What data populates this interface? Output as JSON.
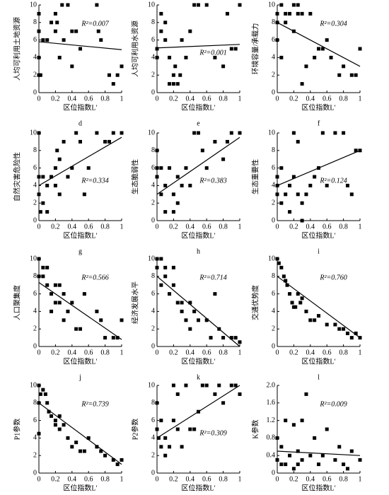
{
  "chart_data": [
    {
      "type": "scatter",
      "label": "d",
      "x_label": "区位指数L′",
      "y_label": "人均可利用土地资源",
      "annotation": "R²=0.007",
      "xlim": [
        0,
        1
      ],
      "xticks": [
        0,
        0.2,
        0.4,
        0.6,
        0.8,
        1
      ],
      "ylim": [
        0,
        10
      ],
      "yticks": [
        0,
        2,
        4,
        6,
        8,
        10
      ],
      "color": "#000000",
      "x": [
        0,
        0,
        0,
        0,
        0.02,
        0.05,
        0.1,
        0.15,
        0.2,
        0.2,
        0.22,
        0.25,
        0.28,
        0.3,
        0.35,
        0.4,
        0.4,
        0.45,
        0.5,
        0.7,
        0.72,
        0.75,
        0.85,
        0.9,
        0.95,
        1
      ],
      "values": [
        9,
        7,
        4,
        2,
        2,
        6,
        6,
        8,
        7,
        9,
        8,
        4,
        10,
        6,
        10,
        7,
        3,
        7,
        5,
        10,
        7,
        6,
        2,
        1,
        2,
        3
      ],
      "trendline": {
        "x": [
          0,
          1
        ],
        "y": [
          5.8,
          4.9
        ]
      }
    },
    {
      "type": "scatter",
      "label": "e",
      "x_label": "区位指数L′",
      "y_label": "人均可利用水资源",
      "annotation": "R²=0.001",
      "xlim": [
        0,
        1
      ],
      "xticks": [
        0,
        0.2,
        0.4,
        0.6,
        0.8,
        1
      ],
      "ylim": [
        0,
        10
      ],
      "yticks": [
        0,
        2,
        4,
        6,
        8,
        10
      ],
      "color": "#000000",
      "x": [
        0,
        0,
        0.05,
        0.05,
        0.1,
        0.1,
        0.15,
        0.15,
        0.2,
        0.2,
        0.22,
        0.25,
        0.28,
        0.3,
        0.35,
        0.4,
        0.45,
        0.5,
        0.6,
        0.7,
        0.8,
        0.85,
        0.9,
        0.95,
        1
      ],
      "values": [
        4,
        5,
        7,
        9,
        8,
        6,
        4,
        1,
        2,
        1,
        3,
        1,
        2,
        6,
        4,
        7,
        10,
        10,
        10,
        4,
        3,
        9,
        5,
        5,
        10
      ],
      "trendline": {
        "x": [
          0,
          1
        ],
        "y": [
          5.1,
          5.5
        ]
      }
    },
    {
      "type": "scatter",
      "label": "f",
      "x_label": "区位指数L′",
      "y_label": "环境容量/承载力",
      "annotation": "R²=0.304",
      "xlim": [
        0,
        1
      ],
      "xticks": [
        0,
        0.2,
        0.4,
        0.6,
        0.8,
        1
      ],
      "ylim": [
        0,
        10
      ],
      "yticks": [
        0,
        2,
        4,
        6,
        8,
        10
      ],
      "color": "#000000",
      "x": [
        0,
        0,
        0,
        0.05,
        0.05,
        0.1,
        0.1,
        0.15,
        0.2,
        0.2,
        0.25,
        0.25,
        0.3,
        0.3,
        0.35,
        0.4,
        0.45,
        0.5,
        0.55,
        0.6,
        0.65,
        0.75,
        0.8,
        0.9,
        0.95,
        1
      ],
      "values": [
        8,
        6,
        9,
        4,
        10,
        9,
        8,
        9,
        10,
        7,
        9,
        10,
        9,
        1,
        3,
        9,
        4,
        5,
        5,
        6,
        4,
        2,
        3,
        2,
        2,
        5
      ],
      "trendline": {
        "x": [
          0,
          1
        ],
        "y": [
          8,
          3
        ]
      }
    },
    {
      "type": "scatter",
      "label": "g",
      "x_label": "区位指数L′",
      "y_label": "自然灾害危险性",
      "annotation": "R²=0.334",
      "xlim": [
        0,
        1
      ],
      "xticks": [
        0,
        0.2,
        0.4,
        0.6,
        0.8,
        1
      ],
      "ylim": [
        0,
        10
      ],
      "yticks": [
        0,
        2,
        4,
        6,
        8,
        10
      ],
      "color": "#000000",
      "x": [
        0,
        0,
        0,
        0.02,
        0.05,
        0.05,
        0.1,
        0.1,
        0.15,
        0.2,
        0.2,
        0.22,
        0.25,
        0.25,
        0.3,
        0.35,
        0.4,
        0.45,
        0.5,
        0.55,
        0.6,
        0.7,
        0.8,
        0.85,
        0.9,
        1
      ],
      "values": [
        10,
        5,
        3,
        1,
        2,
        5,
        4,
        1,
        5,
        6,
        4,
        8,
        7,
        3,
        9,
        5,
        6,
        10,
        9,
        3,
        6,
        10,
        9,
        9,
        10,
        10
      ],
      "trendline": {
        "x": [
          0,
          1
        ],
        "y": [
          4,
          9.5
        ]
      }
    },
    {
      "type": "scatter",
      "label": "h",
      "x_label": "区位指数L′",
      "y_label": "生态脆弱性",
      "annotation": "R²=0.383",
      "xlim": [
        0,
        1
      ],
      "xticks": [
        0,
        0.2,
        0.4,
        0.6,
        0.8,
        1
      ],
      "ylim": [
        0,
        10
      ],
      "yticks": [
        0,
        2,
        4,
        6,
        8,
        10
      ],
      "color": "#000000",
      "x": [
        0,
        0,
        0,
        0.05,
        0.05,
        0.1,
        0.1,
        0.15,
        0.2,
        0.2,
        0.25,
        0.25,
        0.3,
        0.35,
        0.4,
        0.45,
        0.5,
        0.55,
        0.6,
        0.7,
        0.8,
        0.85,
        0.9,
        1
      ],
      "values": [
        8,
        5,
        6,
        3,
        6,
        1,
        4,
        6,
        3,
        1,
        5,
        2,
        4,
        6,
        4,
        10,
        10,
        8,
        6,
        9,
        7,
        9,
        10,
        10
      ],
      "trendline": {
        "x": [
          0,
          1
        ],
        "y": [
          3,
          9.5
        ]
      }
    },
    {
      "type": "scatter",
      "label": "i",
      "x_label": "区位指数L′",
      "y_label": "生态重要性",
      "annotation": "R²=0.124",
      "xlim": [
        0,
        1
      ],
      "xticks": [
        0,
        0.2,
        0.4,
        0.6,
        0.8,
        1
      ],
      "ylim": [
        0,
        10
      ],
      "yticks": [
        0,
        2,
        4,
        6,
        8,
        10
      ],
      "color": "#000000",
      "x": [
        0,
        0,
        0,
        0.05,
        0.05,
        0.1,
        0.15,
        0.15,
        0.2,
        0.2,
        0.25,
        0.25,
        0.3,
        0.3,
        0.35,
        0.4,
        0.45,
        0.5,
        0.55,
        0.6,
        0.7,
        0.8,
        0.85,
        0.9,
        0.95,
        1
      ],
      "values": [
        4,
        3,
        5,
        2,
        6,
        3,
        4,
        1,
        5,
        10,
        3,
        9,
        2,
        0,
        3,
        4,
        5,
        6,
        10,
        4,
        10,
        10,
        4,
        3,
        8,
        8
      ],
      "trendline": {
        "x": [
          0,
          1
        ],
        "y": [
          4,
          8
        ]
      }
    },
    {
      "type": "scatter",
      "label": "j",
      "x_label": "区位指数L′",
      "y_label": "人口聚集度",
      "annotation": "R²=0.566",
      "xlim": [
        0,
        1
      ],
      "xticks": [
        0,
        0.2,
        0.4,
        0.6,
        0.8,
        1
      ],
      "ylim": [
        0,
        10
      ],
      "yticks": [
        0,
        2,
        4,
        6,
        8,
        10
      ],
      "color": "#000000",
      "x": [
        0,
        0,
        0.05,
        0.05,
        0.1,
        0.1,
        0.15,
        0.15,
        0.2,
        0.2,
        0.25,
        0.25,
        0.3,
        0.3,
        0.35,
        0.4,
        0.45,
        0.5,
        0.55,
        0.7,
        0.75,
        0.8,
        0.9,
        0.95,
        1
      ],
      "values": [
        8,
        10,
        9,
        8,
        7,
        9,
        6,
        4,
        7,
        5,
        5,
        7,
        3,
        6,
        4,
        5,
        2,
        2,
        6,
        4,
        3,
        1,
        1,
        1,
        3
      ],
      "trendline": {
        "x": [
          0,
          1
        ],
        "y": [
          7.3,
          0.8
        ]
      }
    },
    {
      "type": "scatter",
      "label": "k",
      "x_label": "区位指数L′",
      "y_label": "经济发展水平",
      "annotation": "R²=0.714",
      "xlim": [
        0,
        1
      ],
      "xticks": [
        0,
        0.2,
        0.4,
        0.6,
        0.8,
        1
      ],
      "ylim": [
        0,
        10
      ],
      "yticks": [
        0,
        2,
        4,
        6,
        8,
        10
      ],
      "color": "#000000",
      "x": [
        0,
        0,
        0.05,
        0.05,
        0.1,
        0.1,
        0.15,
        0.2,
        0.2,
        0.25,
        0.3,
        0.3,
        0.35,
        0.4,
        0.4,
        0.45,
        0.5,
        0.6,
        0.65,
        0.7,
        0.75,
        0.8,
        0.9,
        0.95,
        1
      ],
      "values": [
        10,
        9,
        10,
        7,
        9,
        8,
        6,
        7,
        9,
        5,
        5,
        4,
        3,
        5,
        2,
        4,
        3,
        3,
        1,
        6,
        2,
        1,
        1,
        1,
        0.5
      ],
      "trendline": {
        "x": [
          0,
          1
        ],
        "y": [
          8,
          0
        ]
      }
    },
    {
      "type": "scatter",
      "label": "l",
      "x_label": "区位指数L′",
      "y_label": "交通优势度",
      "annotation": "R²=0.760",
      "xlim": [
        0,
        1
      ],
      "xticks": [
        0,
        0.2,
        0.4,
        0.6,
        0.8,
        1
      ],
      "ylim": [
        0,
        10
      ],
      "yticks": [
        0,
        2,
        4,
        6,
        8,
        10
      ],
      "color": "#000000",
      "x": [
        0,
        0.02,
        0.05,
        0.08,
        0.1,
        0.12,
        0.15,
        0.18,
        0.2,
        0.22,
        0.25,
        0.28,
        0.3,
        0.35,
        0.4,
        0.45,
        0.5,
        0.6,
        0.7,
        0.75,
        0.8,
        0.85,
        0.9,
        0.95,
        1
      ],
      "values": [
        10,
        9.5,
        9,
        8,
        7.5,
        7,
        6,
        5,
        4.5,
        4.5,
        6,
        5,
        5.5,
        4,
        3,
        3,
        3.5,
        2.5,
        2.5,
        2,
        2,
        1.5,
        1,
        1.5,
        1
      ],
      "trendline": {
        "x": [
          0,
          1
        ],
        "y": [
          8,
          1
        ]
      }
    },
    {
      "type": "scatter",
      "x_label": "区位指数L′",
      "y_label": "P1参数",
      "annotation": "R²=0.739",
      "xlim": [
        0,
        1
      ],
      "xticks": [
        0,
        0.2,
        0.4,
        0.6,
        0.8,
        1
      ],
      "ylim": [
        0,
        10
      ],
      "yticks": [
        0,
        2,
        4,
        6,
        8,
        10
      ],
      "color": "#000000",
      "x": [
        0,
        0,
        0,
        0.02,
        0.05,
        0.08,
        0.1,
        0.12,
        0.15,
        0.2,
        0.2,
        0.25,
        0.25,
        0.3,
        0.35,
        0.4,
        0.45,
        0.5,
        0.55,
        0.6,
        0.7,
        0.75,
        0.8,
        0.9,
        0.95,
        1
      ],
      "values": [
        10,
        4.5,
        8,
        9,
        9.5,
        9,
        8,
        7,
        6.5,
        6,
        5.5,
        6.5,
        5,
        5.5,
        4,
        3,
        3.5,
        2.5,
        2.5,
        4,
        3,
        2.5,
        2,
        1.5,
        1,
        1.5
      ],
      "trendline": {
        "x": [
          0,
          1
        ],
        "y": [
          8,
          1
        ]
      }
    },
    {
      "type": "scatter",
      "x_label": "区位指数L′",
      "y_label": "P2参数",
      "annotation": "R²=0.309",
      "xlim": [
        0,
        1
      ],
      "xticks": [
        0,
        0.2,
        0.4,
        0.6,
        0.8,
        1
      ],
      "ylim": [
        0,
        10
      ],
      "yticks": [
        0,
        2,
        4,
        6,
        8,
        10
      ],
      "color": "#000000",
      "x": [
        0,
        0,
        0.02,
        0.05,
        0.05,
        0.1,
        0.1,
        0.15,
        0.2,
        0.2,
        0.25,
        0.25,
        0.3,
        0.35,
        0.4,
        0.45,
        0.5,
        0.55,
        0.6,
        0.7,
        0.75,
        0.8,
        0.9,
        0.95,
        1
      ],
      "values": [
        8,
        5,
        4,
        3,
        6,
        2,
        4,
        3,
        6,
        10,
        5,
        9,
        3,
        10,
        5,
        5,
        7,
        10,
        10,
        9,
        10,
        8,
        10,
        10,
        9
      ],
      "trendline": {
        "x": [
          0,
          1
        ],
        "y": [
          4,
          10
        ]
      }
    },
    {
      "type": "scatter",
      "x_label": "区位指数L′",
      "y_label": "K参数",
      "annotation": "R²=0.009",
      "xlim": [
        0,
        1
      ],
      "xticks": [
        0,
        0.2,
        0.4,
        0.6,
        0.8,
        1
      ],
      "ylim": [
        0,
        2
      ],
      "yticks": [
        0,
        0.4,
        0.8,
        1.2,
        1.6,
        {
          "value": 2,
          "label": "2.0"
        }
      ],
      "color": "#000000",
      "x": [
        0,
        0,
        0.05,
        0.05,
        0.1,
        0.1,
        0.15,
        0.2,
        0.2,
        0.25,
        0.25,
        0.3,
        0.3,
        0.35,
        0.4,
        0.45,
        0.5,
        0.55,
        0.6,
        0.7,
        0.75,
        0.8,
        0.85,
        0.9,
        1
      ],
      "values": [
        0.8,
        0.3,
        0.2,
        0.6,
        1.2,
        0.2,
        0.4,
        1.1,
        0.1,
        0.5,
        0.2,
        1.2,
        0.3,
        1.8,
        0.4,
        0.8,
        0.2,
        0.4,
        1.0,
        0.3,
        0.6,
        0.2,
        0.1,
        0.5,
        0.3
      ],
      "trendline": {
        "x": [
          0,
          1
        ],
        "y": [
          0.5,
          0.4
        ]
      }
    }
  ]
}
